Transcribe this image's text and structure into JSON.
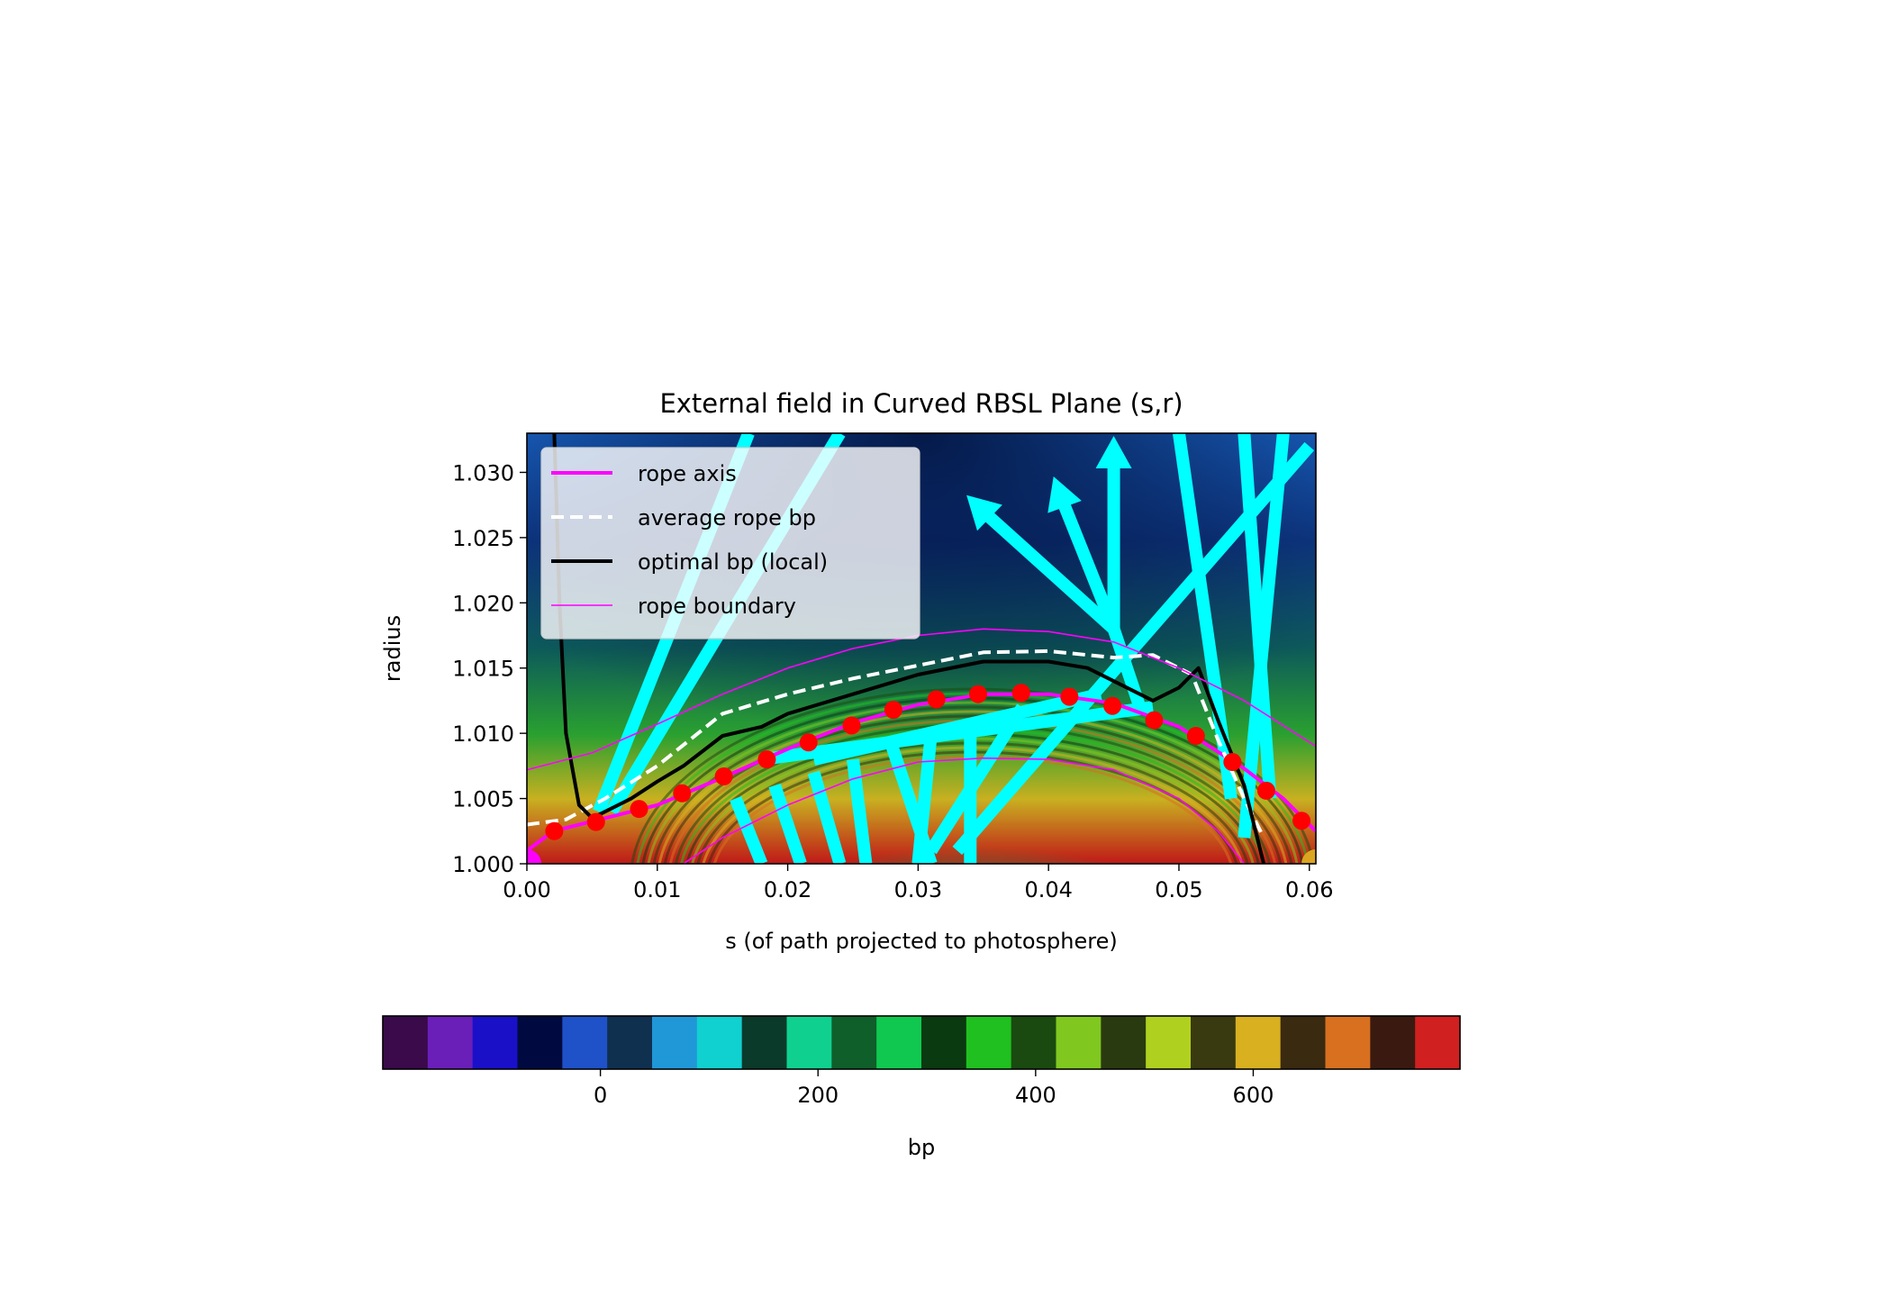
{
  "chart_data": {
    "type": "heatmap",
    "title": "External field in Curved RBSL Plane (s,r)",
    "xlabel": "s (of path projected to photosphere)",
    "ylabel": "radius",
    "xlim": [
      0.0,
      0.0605
    ],
    "ylim": [
      1.0,
      1.033
    ],
    "xticks": [
      "0.00",
      "0.01",
      "0.02",
      "0.03",
      "0.04",
      "0.05",
      "0.06"
    ],
    "yticks": [
      "1.000",
      "1.005",
      "1.010",
      "1.015",
      "1.020",
      "1.025",
      "1.030"
    ],
    "legend": {
      "placement": "upper-left",
      "entries": [
        {
          "label": "rope axis",
          "style": "solid-thick",
          "color": "#ff00ff"
        },
        {
          "label": "average rope bp",
          "style": "dashed",
          "color": "#ffffff"
        },
        {
          "label": "optimal bp (local)",
          "style": "solid-thick",
          "color": "#000000"
        },
        {
          "label": "rope boundary",
          "style": "solid-thin",
          "color": "#ff00ff"
        }
      ]
    },
    "series": [
      {
        "name": "rope axis",
        "x": [
          0.0,
          0.002,
          0.006,
          0.01,
          0.015,
          0.02,
          0.025,
          0.03,
          0.035,
          0.04,
          0.045,
          0.05,
          0.055,
          0.058,
          0.0605
        ],
        "y": [
          1.001,
          1.0025,
          1.0035,
          1.0045,
          1.0066,
          1.0088,
          1.0108,
          1.0122,
          1.013,
          1.013,
          1.0123,
          1.0105,
          1.0073,
          1.005,
          1.0025
        ]
      },
      {
        "name": "average rope bp",
        "x": [
          0.0,
          0.003,
          0.006,
          0.01,
          0.015,
          0.02,
          0.025,
          0.03,
          0.035,
          0.04,
          0.045,
          0.048,
          0.051,
          0.053,
          0.055,
          0.0565
        ],
        "y": [
          1.003,
          1.0034,
          1.005,
          1.0075,
          1.0115,
          1.013,
          1.0142,
          1.0152,
          1.0162,
          1.0163,
          1.0158,
          1.016,
          1.0145,
          1.0095,
          1.005,
          1.002
        ]
      },
      {
        "name": "optimal bp (local)",
        "x": [
          0.0021,
          0.0025,
          0.003,
          0.004,
          0.005,
          0.006,
          0.008,
          0.01,
          0.012,
          0.015,
          0.018,
          0.02,
          0.025,
          0.03,
          0.035,
          0.04,
          0.043,
          0.048,
          0.05,
          0.0515,
          0.053,
          0.055,
          0.0565
        ],
        "y": [
          1.033,
          1.02,
          1.01,
          1.0045,
          1.0035,
          1.004,
          1.005,
          1.0063,
          1.0075,
          1.0098,
          1.0105,
          1.0115,
          1.013,
          1.0145,
          1.0155,
          1.0155,
          1.015,
          1.0125,
          1.0135,
          1.015,
          1.011,
          1.006,
          1.0
        ]
      },
      {
        "name": "rope boundary",
        "x": [
          0.0,
          0.005,
          0.01,
          0.015,
          0.02,
          0.025,
          0.03,
          0.035,
          0.04,
          0.045,
          0.05,
          0.055,
          0.0605
        ],
        "y": [
          1.0072,
          1.0085,
          1.0107,
          1.013,
          1.015,
          1.0165,
          1.0175,
          1.018,
          1.0178,
          1.017,
          1.015,
          1.0125,
          1.009
        ]
      },
      {
        "name": "rope boundary",
        "x": [
          0.012,
          0.015,
          0.02,
          0.025,
          0.03,
          0.035,
          0.04,
          0.045,
          0.05,
          0.053,
          0.055
        ],
        "y": [
          1.0,
          1.002,
          1.0045,
          1.0065,
          1.0078,
          1.0081,
          1.008,
          1.0072,
          1.005,
          1.0025,
          1.0
        ]
      }
    ],
    "markers": {
      "color": "#ff0000",
      "x": [
        0.0021,
        0.0053,
        0.0086,
        0.0119,
        0.0151,
        0.0184,
        0.0216,
        0.0249,
        0.0281,
        0.0314,
        0.0346,
        0.0379,
        0.0416,
        0.0449,
        0.0481,
        0.0513,
        0.0541,
        0.0567,
        0.0594
      ],
      "y": [
        1.0025,
        1.0032,
        1.0042,
        1.0054,
        1.0067,
        1.008,
        1.0093,
        1.0106,
        1.0118,
        1.0126,
        1.013,
        1.0131,
        1.0128,
        1.0121,
        1.011,
        1.0098,
        1.0078,
        1.0056,
        1.0033
      ]
    },
    "endpoints": [
      {
        "x": 0.0,
        "y": 1.0,
        "color": "#ff00ff"
      },
      {
        "x": 0.0605,
        "y": 1.0,
        "color": "#daa520"
      }
    ],
    "colorbar": {
      "label": "bp",
      "range": [
        -200,
        790
      ],
      "ticks": [
        0,
        200,
        400,
        600
      ],
      "colors": [
        "#3a0a4a",
        "#6a1fb8",
        "#1a10c8",
        "#000a40",
        "#1f52c8",
        "#103050",
        "#2098d8",
        "#10d0d0",
        "#0a3a2a",
        "#10d090",
        "#0f5f2a",
        "#10c850",
        "#0a3a10",
        "#20c020",
        "#1a4a10",
        "#80c820",
        "#2a3a10",
        "#b0d020",
        "#3a3a10",
        "#d8b020",
        "#3a2a10",
        "#d87020",
        "#3a1a10",
        "#d02020"
      ]
    },
    "overlay_color": "#00ffff"
  }
}
